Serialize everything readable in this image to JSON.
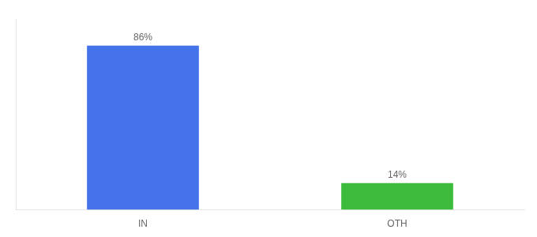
{
  "chart_data": {
    "type": "bar",
    "categories": [
      "IN",
      "OTH"
    ],
    "values": [
      86,
      14
    ],
    "value_labels": [
      "86%",
      "14%"
    ],
    "colors": [
      "#4472e8",
      "#3dbb3d"
    ],
    "ylim": [
      0,
      100
    ],
    "data_labels": true,
    "tick_labels": "x",
    "grid": false
  }
}
